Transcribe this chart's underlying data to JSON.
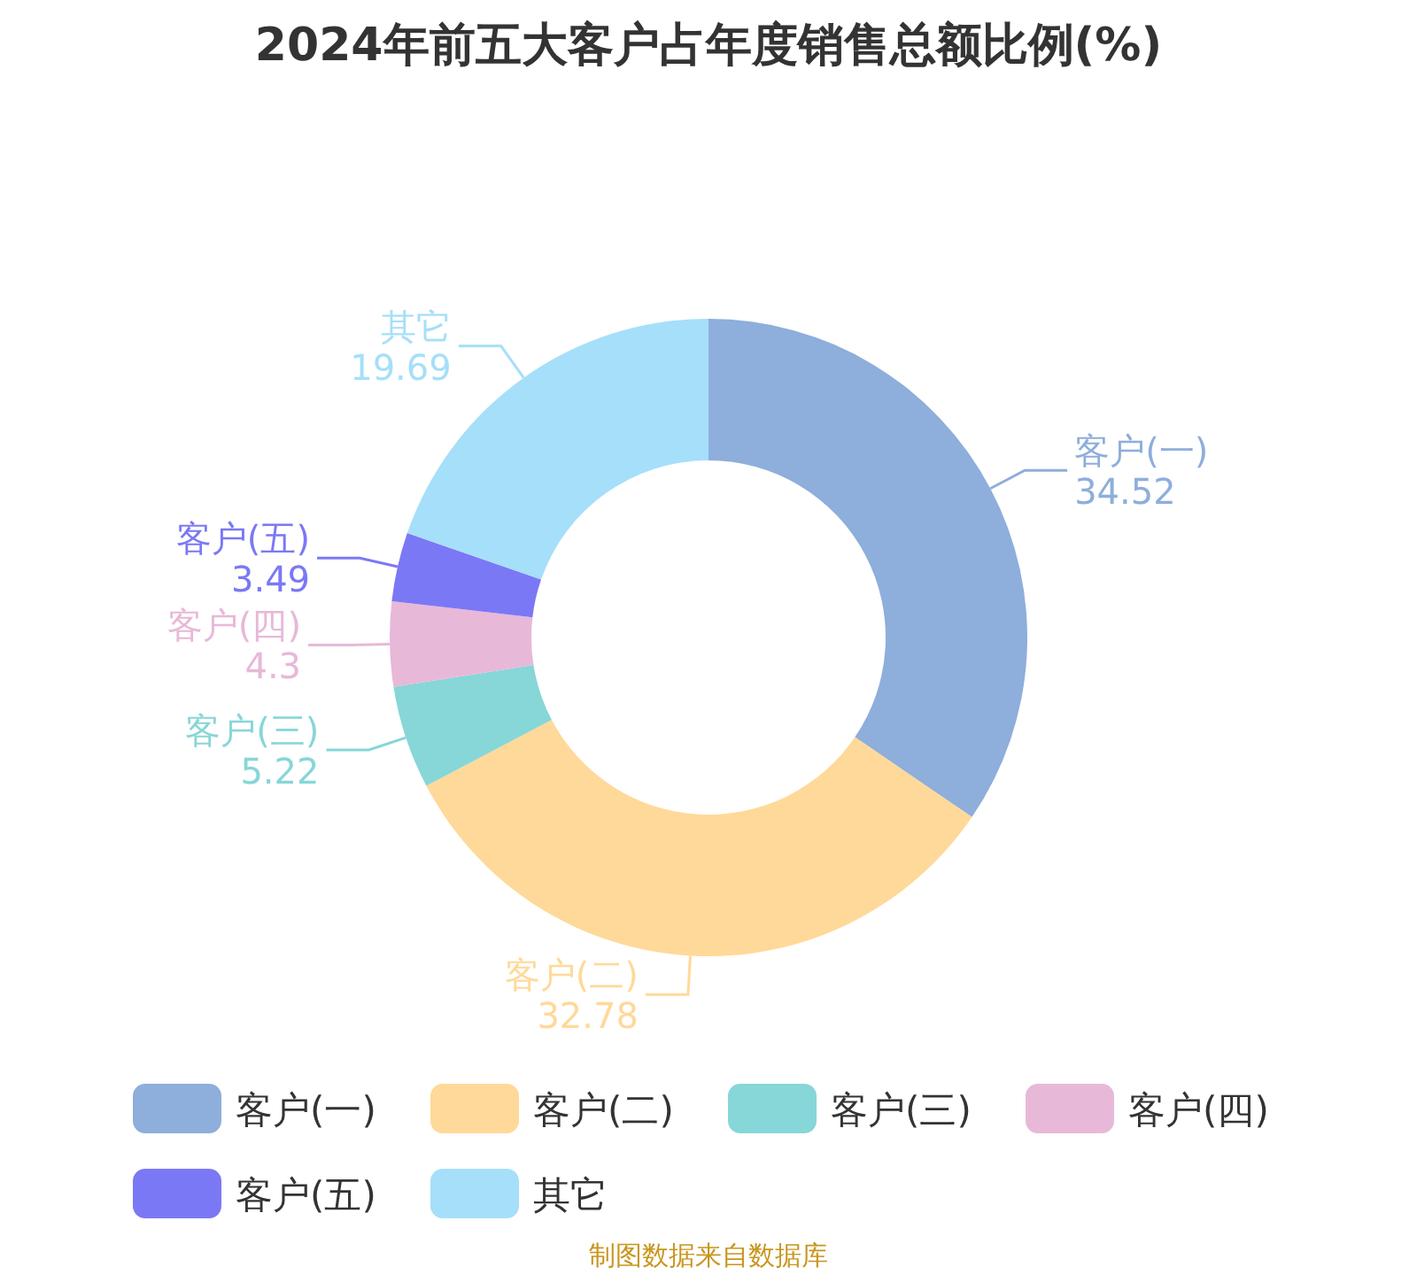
{
  "chart_data": {
    "type": "donut",
    "title": "2024年前五大客户占年度销售总额比例(%)",
    "categories": [
      "客户(一)",
      "客户(二)",
      "客户(三)",
      "客户(四)",
      "客户(五)",
      "其它"
    ],
    "values": [
      34.52,
      32.78,
      5.22,
      4.3,
      3.49,
      19.69
    ],
    "colors": [
      "#8eaedb",
      "#ffd999",
      "#87d6d8",
      "#e8b8d8",
      "#7b78f5",
      "#a6dff9"
    ],
    "data_labels": true,
    "legend": "bottom",
    "annotations": [
      "制图数据来自数据库"
    ]
  }
}
